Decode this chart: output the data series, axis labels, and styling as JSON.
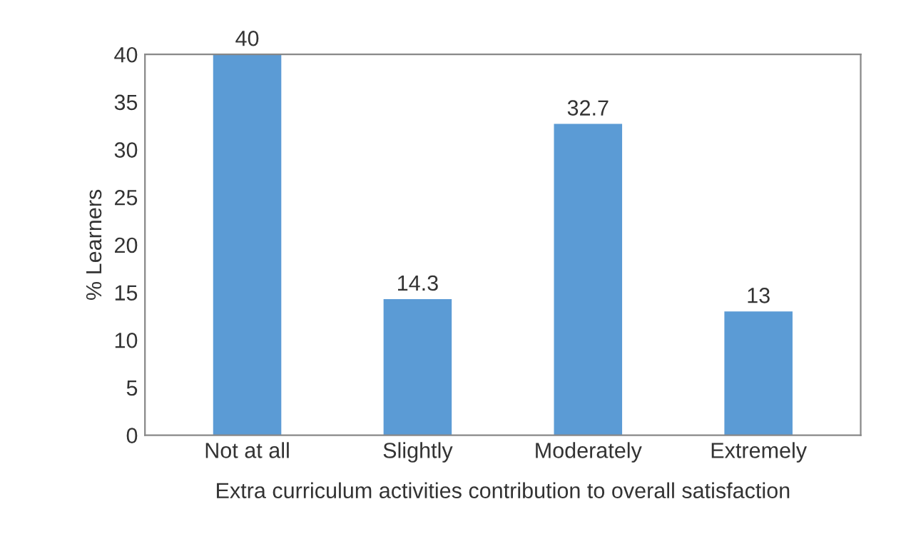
{
  "chart_data": {
    "type": "bar",
    "categories": [
      "Not at all",
      "Slightly",
      "Moderately",
      "Extremely"
    ],
    "values": [
      40,
      14.3,
      32.7,
      13
    ],
    "color": "#5b9bd5",
    "xlabel": "Extra curriculum activities contribution to overall satisfaction",
    "ylabel": "% Learners",
    "ylim": [
      0,
      40
    ],
    "yticks": [
      0,
      5,
      10,
      15,
      20,
      25,
      30,
      35,
      40
    ],
    "data_labels": true,
    "grid": false,
    "legend": false
  }
}
